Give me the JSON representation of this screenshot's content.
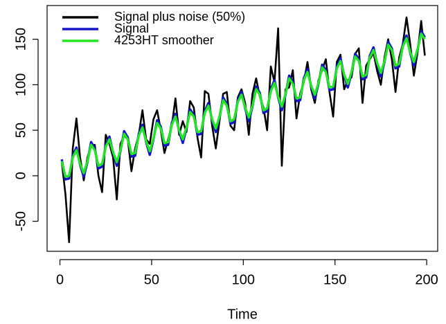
{
  "chart_data": {
    "type": "line",
    "x_label": "Time",
    "x": [
      1,
      3,
      5,
      7,
      9,
      11,
      13,
      15,
      17,
      19,
      21,
      23,
      25,
      27,
      29,
      31,
      33,
      35,
      37,
      39,
      41,
      43,
      45,
      47,
      49,
      51,
      53,
      55,
      57,
      59,
      61,
      63,
      65,
      67,
      69,
      71,
      73,
      75,
      77,
      79,
      81,
      83,
      85,
      87,
      89,
      91,
      93,
      95,
      97,
      99,
      101,
      103,
      105,
      107,
      109,
      111,
      113,
      115,
      117,
      119,
      121,
      123,
      125,
      127,
      129,
      131,
      133,
      135,
      137,
      139,
      141,
      143,
      145,
      147,
      149,
      151,
      153,
      155,
      157,
      159,
      161,
      163,
      165,
      167,
      169,
      171,
      173,
      175,
      177,
      179,
      181,
      183,
      185,
      187,
      189,
      191,
      193,
      195,
      197,
      199
    ],
    "series": [
      {
        "name": "Signal plus noise (50%)",
        "color": "#000000",
        "values": [
          15,
          -20,
          -73,
          30,
          63,
          20,
          -5,
          20,
          33,
          34,
          0,
          -18,
          45,
          35,
          20,
          -26,
          35,
          44,
          40,
          5,
          30,
          45,
          72,
          40,
          35,
          62,
          72,
          50,
          25,
          40,
          55,
          85,
          45,
          60,
          48,
          82,
          75,
          42,
          20,
          93,
          90,
          55,
          30,
          60,
          90,
          92,
          55,
          50,
          86,
          95,
          80,
          45,
          90,
          107,
          87,
          75,
          50,
          120,
          103,
          162,
          11,
          95,
          97,
          116,
          63,
          90,
          103,
          125,
          95,
          80,
          105,
          116,
          128,
          92,
          65,
          125,
          133,
          95,
          105,
          108,
          134,
          140,
          80,
          121,
          128,
          135,
          115,
          100,
          130,
          150,
          128,
          92,
          130,
          145,
          174,
          145,
          110,
          135,
          170,
          132
        ]
      },
      {
        "name": "Signal",
        "color": "#1414c8",
        "values": [
          18,
          -4,
          -3,
          22,
          31,
          12,
          -1,
          15,
          37,
          30,
          8,
          10,
          34,
          43,
          25,
          11,
          27,
          49,
          42,
          21,
          22,
          46,
          56,
          37,
          23,
          40,
          61,
          54,
          33,
          34,
          58,
          68,
          49,
          36,
          52,
          73,
          67,
          45,
          46,
          71,
          80,
          61,
          48,
          64,
          86,
          79,
          57,
          59,
          83,
          92,
          74,
          60,
          76,
          98,
          91,
          69,
          71,
          95,
          105,
          86,
          72,
          89,
          110,
          103,
          82,
          83,
          107,
          117,
          98,
          85,
          101,
          122,
          116,
          94,
          95,
          120,
          129,
          110,
          97,
          113,
          134,
          128,
          106,
          108,
          132,
          141,
          123,
          109,
          125,
          147,
          140,
          118,
          120,
          144,
          154,
          135,
          121,
          138,
          159,
          152
        ]
      },
      {
        "name": "4253HT smoother",
        "color": "#22e622",
        "values": [
          16,
          -1,
          0,
          20,
          28,
          13,
          3,
          16,
          34,
          28,
          11,
          13,
          32,
          40,
          26,
          15,
          28,
          46,
          40,
          24,
          25,
          44,
          53,
          38,
          27,
          41,
          58,
          52,
          36,
          37,
          56,
          65,
          50,
          40,
          53,
          70,
          65,
          48,
          49,
          69,
          77,
          62,
          52,
          65,
          83,
          77,
          60,
          62,
          81,
          89,
          75,
          64,
          77,
          95,
          89,
          72,
          74,
          93,
          102,
          87,
          76,
          90,
          107,
          101,
          85,
          86,
          105,
          114,
          99,
          89,
          102,
          119,
          114,
          97,
          98,
          118,
          126,
          111,
          101,
          114,
          131,
          126,
          109,
          111,
          130,
          138,
          124,
          113,
          126,
          144,
          138,
          121,
          123,
          142,
          151,
          136,
          125,
          139,
          156,
          150
        ]
      }
    ],
    "xlim": [
      -7,
      206
    ],
    "ylim": [
      -83,
      187
    ],
    "xticks": [
      0,
      50,
      100,
      150,
      200
    ],
    "yticks": [
      -50,
      0,
      50,
      100,
      150
    ],
    "legend": "top-left"
  }
}
